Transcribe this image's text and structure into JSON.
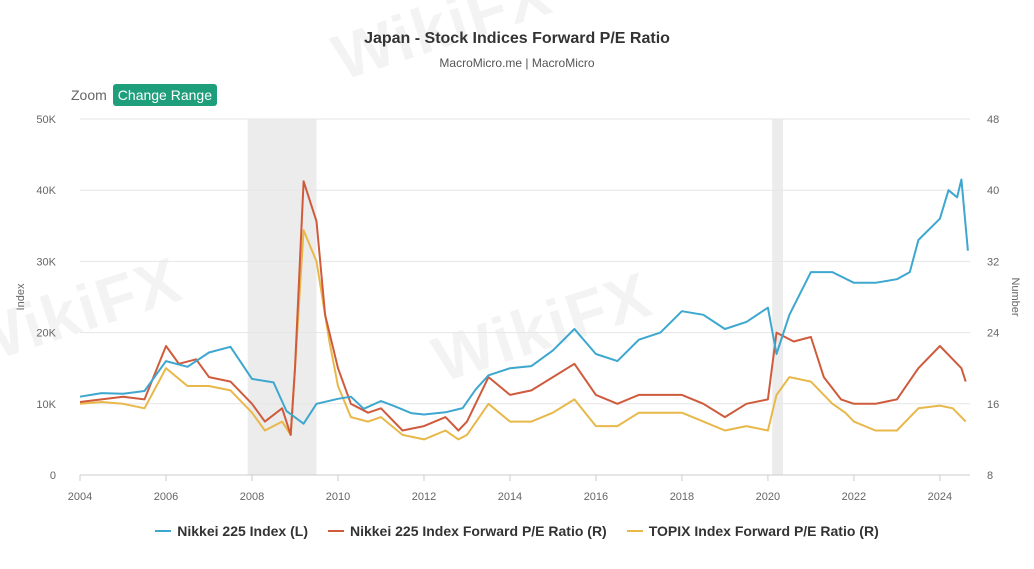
{
  "title": "Japan - Stock Indices Forward P/E Ratio",
  "subtitle": "MacroMicro.me | MacroMicro",
  "zoom": {
    "label": "Zoom",
    "button_label": "Change Range"
  },
  "watermark": "WikiFX",
  "chart_data": {
    "type": "line",
    "title": "Japan - Stock Indices Forward P/E Ratio",
    "x_range": [
      2004,
      2024.7
    ],
    "x_ticks": [
      "2004",
      "2006",
      "2008",
      "2010",
      "2012",
      "2014",
      "2016",
      "2018",
      "2020",
      "2022",
      "2024"
    ],
    "left_axis": {
      "label": "Index",
      "min": 0,
      "max": 50000,
      "ticks": [
        "0",
        "10K",
        "20K",
        "30K",
        "40K",
        "50K"
      ]
    },
    "right_axis": {
      "label": "Number",
      "min": 8,
      "max": 48,
      "ticks": [
        "8",
        "16",
        "24",
        "32",
        "40",
        "48"
      ]
    },
    "grid": true,
    "legend_position": "bottom-center",
    "recession_bands": [
      [
        2007.9,
        2009.5
      ],
      [
        2020.1,
        2020.35
      ]
    ],
    "series": [
      {
        "name": "Nikkei 225 Index (L)",
        "axis": "left",
        "color": "#3da7cf",
        "points": [
          [
            2004.0,
            11000
          ],
          [
            2004.5,
            11500
          ],
          [
            2005.0,
            11400
          ],
          [
            2005.5,
            11800
          ],
          [
            2006.0,
            16000
          ],
          [
            2006.5,
            15200
          ],
          [
            2007.0,
            17200
          ],
          [
            2007.5,
            18000
          ],
          [
            2008.0,
            13500
          ],
          [
            2008.5,
            13000
          ],
          [
            2008.8,
            9000
          ],
          [
            2009.2,
            7200
          ],
          [
            2009.5,
            10000
          ],
          [
            2010.0,
            10700
          ],
          [
            2010.3,
            11000
          ],
          [
            2010.6,
            9300
          ],
          [
            2011.0,
            10400
          ],
          [
            2011.3,
            9700
          ],
          [
            2011.7,
            8700
          ],
          [
            2012.0,
            8500
          ],
          [
            2012.5,
            8800
          ],
          [
            2012.9,
            9400
          ],
          [
            2013.2,
            12000
          ],
          [
            2013.5,
            14000
          ],
          [
            2014.0,
            15000
          ],
          [
            2014.5,
            15300
          ],
          [
            2015.0,
            17500
          ],
          [
            2015.5,
            20500
          ],
          [
            2016.0,
            17000
          ],
          [
            2016.5,
            16000
          ],
          [
            2017.0,
            19000
          ],
          [
            2017.5,
            20000
          ],
          [
            2018.0,
            23000
          ],
          [
            2018.5,
            22500
          ],
          [
            2019.0,
            20500
          ],
          [
            2019.5,
            21500
          ],
          [
            2020.0,
            23500
          ],
          [
            2020.2,
            17000
          ],
          [
            2020.5,
            22500
          ],
          [
            2021.0,
            28500
          ],
          [
            2021.5,
            28500
          ],
          [
            2022.0,
            27000
          ],
          [
            2022.5,
            27000
          ],
          [
            2023.0,
            27500
          ],
          [
            2023.3,
            28500
          ],
          [
            2023.5,
            33000
          ],
          [
            2024.0,
            36000
          ],
          [
            2024.2,
            40000
          ],
          [
            2024.4,
            39000
          ],
          [
            2024.5,
            41500
          ],
          [
            2024.65,
            31500
          ]
        ]
      },
      {
        "name": "Nikkei 225 Index Forward P/E Ratio (R)",
        "axis": "right",
        "color": "#cf5b3d",
        "points": [
          [
            2004.0,
            16.2
          ],
          [
            2004.5,
            16.5
          ],
          [
            2005.0,
            16.8
          ],
          [
            2005.5,
            16.5
          ],
          [
            2006.0,
            22.5
          ],
          [
            2006.3,
            20.5
          ],
          [
            2006.7,
            21.0
          ],
          [
            2007.0,
            19.0
          ],
          [
            2007.5,
            18.5
          ],
          [
            2008.0,
            16.0
          ],
          [
            2008.3,
            14.0
          ],
          [
            2008.7,
            15.5
          ],
          [
            2008.9,
            12.5
          ],
          [
            2009.0,
            20.0
          ],
          [
            2009.2,
            41.0
          ],
          [
            2009.5,
            36.5
          ],
          [
            2009.7,
            26.0
          ],
          [
            2010.0,
            20.0
          ],
          [
            2010.3,
            16.0
          ],
          [
            2010.7,
            15.0
          ],
          [
            2011.0,
            15.5
          ],
          [
            2011.5,
            13.0
          ],
          [
            2012.0,
            13.5
          ],
          [
            2012.5,
            14.5
          ],
          [
            2012.8,
            13.0
          ],
          [
            2013.0,
            14.0
          ],
          [
            2013.5,
            19.0
          ],
          [
            2014.0,
            17.0
          ],
          [
            2014.5,
            17.5
          ],
          [
            2015.0,
            19.0
          ],
          [
            2015.5,
            20.5
          ],
          [
            2016.0,
            17.0
          ],
          [
            2016.5,
            16.0
          ],
          [
            2017.0,
            17.0
          ],
          [
            2017.5,
            17.0
          ],
          [
            2018.0,
            17.0
          ],
          [
            2018.5,
            16.0
          ],
          [
            2019.0,
            14.5
          ],
          [
            2019.5,
            16.0
          ],
          [
            2020.0,
            16.5
          ],
          [
            2020.2,
            24.0
          ],
          [
            2020.6,
            23.0
          ],
          [
            2021.0,
            23.5
          ],
          [
            2021.3,
            19.0
          ],
          [
            2021.7,
            16.5
          ],
          [
            2022.0,
            16.0
          ],
          [
            2022.5,
            16.0
          ],
          [
            2023.0,
            16.5
          ],
          [
            2023.5,
            20.0
          ],
          [
            2024.0,
            22.5
          ],
          [
            2024.3,
            21.0
          ],
          [
            2024.5,
            20.0
          ],
          [
            2024.6,
            18.5
          ]
        ]
      },
      {
        "name": "TOPIX Index Forward P/E Ratio (R)",
        "axis": "right",
        "color": "#e8b84a",
        "points": [
          [
            2004.0,
            16.0
          ],
          [
            2004.5,
            16.2
          ],
          [
            2005.0,
            16.0
          ],
          [
            2005.5,
            15.5
          ],
          [
            2006.0,
            20.0
          ],
          [
            2006.5,
            18.0
          ],
          [
            2007.0,
            18.0
          ],
          [
            2007.5,
            17.5
          ],
          [
            2008.0,
            15.0
          ],
          [
            2008.3,
            13.0
          ],
          [
            2008.7,
            14.0
          ],
          [
            2008.9,
            12.5
          ],
          [
            2009.0,
            20.0
          ],
          [
            2009.2,
            35.5
          ],
          [
            2009.5,
            32.0
          ],
          [
            2009.8,
            23.0
          ],
          [
            2010.0,
            18.0
          ],
          [
            2010.3,
            14.5
          ],
          [
            2010.7,
            14.0
          ],
          [
            2011.0,
            14.5
          ],
          [
            2011.5,
            12.5
          ],
          [
            2012.0,
            12.0
          ],
          [
            2012.5,
            13.0
          ],
          [
            2012.8,
            12.0
          ],
          [
            2013.0,
            12.5
          ],
          [
            2013.5,
            16.0
          ],
          [
            2014.0,
            14.0
          ],
          [
            2014.5,
            14.0
          ],
          [
            2015.0,
            15.0
          ],
          [
            2015.5,
            16.5
          ],
          [
            2016.0,
            13.5
          ],
          [
            2016.5,
            13.5
          ],
          [
            2017.0,
            15.0
          ],
          [
            2017.5,
            15.0
          ],
          [
            2018.0,
            15.0
          ],
          [
            2018.5,
            14.0
          ],
          [
            2019.0,
            13.0
          ],
          [
            2019.5,
            13.5
          ],
          [
            2020.0,
            13.0
          ],
          [
            2020.2,
            17.0
          ],
          [
            2020.5,
            19.0
          ],
          [
            2021.0,
            18.5
          ],
          [
            2021.5,
            16.0
          ],
          [
            2021.8,
            15.0
          ],
          [
            2022.0,
            14.0
          ],
          [
            2022.5,
            13.0
          ],
          [
            2023.0,
            13.0
          ],
          [
            2023.5,
            15.5
          ],
          [
            2024.0,
            15.8
          ],
          [
            2024.3,
            15.5
          ],
          [
            2024.6,
            14.0
          ]
        ]
      }
    ]
  }
}
